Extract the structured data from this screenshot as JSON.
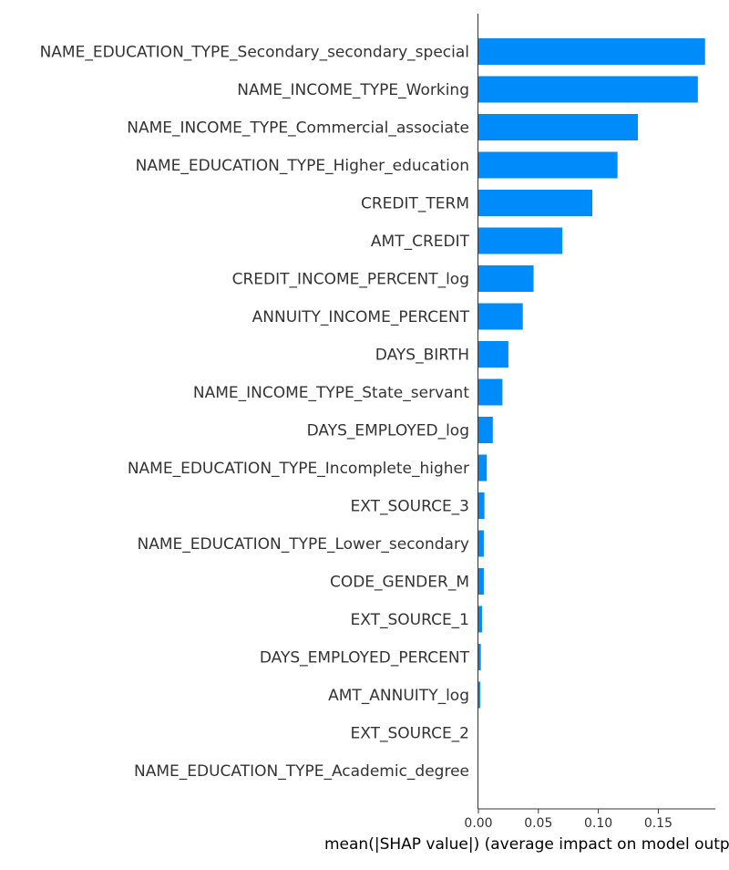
{
  "chart_data": {
    "type": "bar",
    "orientation": "horizontal",
    "categories": [
      "NAME_EDUCATION_TYPE_Secondary_secondary_special",
      "NAME_INCOME_TYPE_Working",
      "NAME_INCOME_TYPE_Commercial_associate",
      "NAME_EDUCATION_TYPE_Higher_education",
      "CREDIT_TERM",
      "AMT_CREDIT",
      "CREDIT_INCOME_PERCENT_log",
      "ANNUITY_INCOME_PERCENT",
      "DAYS_BIRTH",
      "NAME_INCOME_TYPE_State_servant",
      "DAYS_EMPLOYED_log",
      "NAME_EDUCATION_TYPE_Incomplete_higher",
      "EXT_SOURCE_3",
      "NAME_EDUCATION_TYPE_Lower_secondary",
      "CODE_GENDER_M",
      "EXT_SOURCE_1",
      "DAYS_EMPLOYED_PERCENT",
      "AMT_ANNUITY_log",
      "EXT_SOURCE_2",
      "NAME_EDUCATION_TYPE_Academic_degree"
    ],
    "values": [
      0.189,
      0.183,
      0.133,
      0.116,
      0.095,
      0.07,
      0.046,
      0.037,
      0.025,
      0.02,
      0.012,
      0.007,
      0.005,
      0.0045,
      0.0045,
      0.003,
      0.002,
      0.0015,
      0.0,
      0.0
    ],
    "xlabel": "mean(|SHAP value|) (average impact on model output magnitude)",
    "ylabel": "",
    "title": "",
    "xticks": [
      "0.00",
      "0.05",
      "0.10",
      "0.15"
    ],
    "xlim": [
      0.0,
      0.199
    ],
    "bar_color": "#008bfb",
    "axis_color": "#333333",
    "grid": false,
    "legend": "none"
  }
}
